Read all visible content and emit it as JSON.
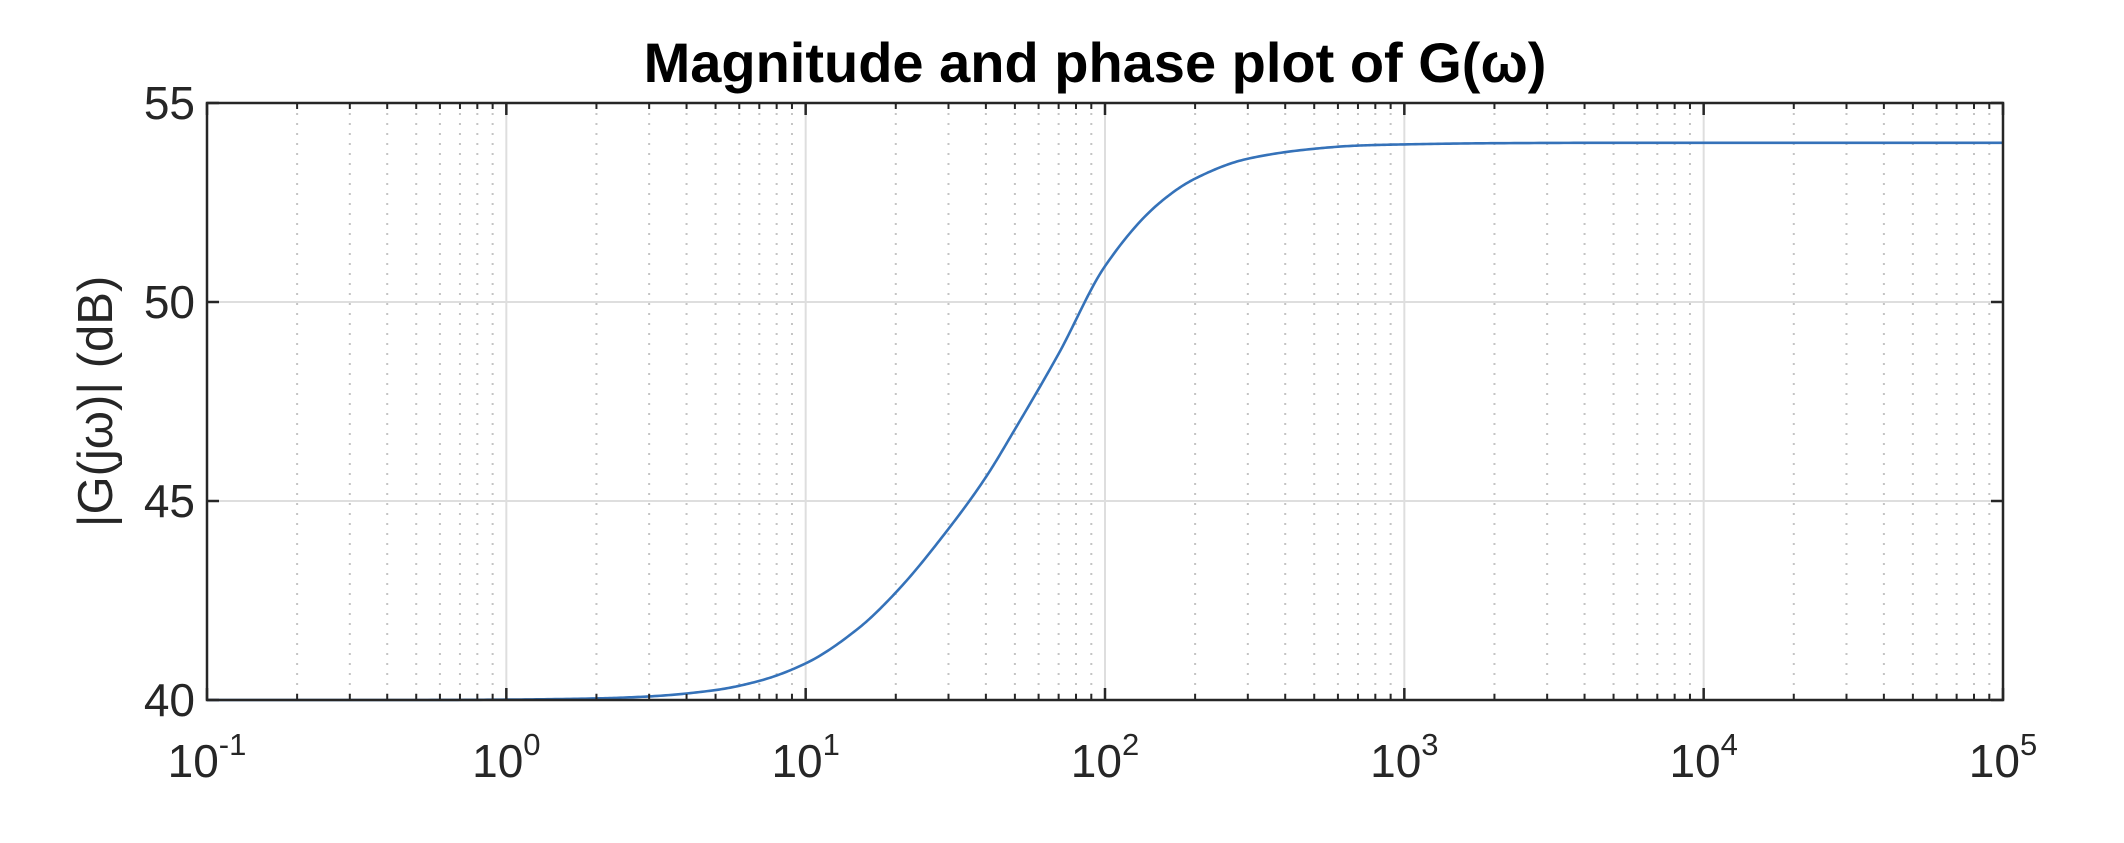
{
  "chart_data": {
    "type": "line",
    "title": "Magnitude and phase plot of G(ω)",
    "xlabel": "",
    "ylabel": "|G(jω)| (dB)",
    "xscale": "log",
    "xlim": [
      0.1,
      100000
    ],
    "ylim": [
      40,
      55
    ],
    "xticks": [
      {
        "base": "10",
        "exp": "-1"
      },
      {
        "base": "10",
        "exp": "0"
      },
      {
        "base": "10",
        "exp": "1"
      },
      {
        "base": "10",
        "exp": "2"
      },
      {
        "base": "10",
        "exp": "3"
      },
      {
        "base": "10",
        "exp": "4"
      },
      {
        "base": "10",
        "exp": "5"
      }
    ],
    "xtick_values": [
      0.1,
      1,
      10,
      100,
      1000,
      10000,
      100000
    ],
    "yticks": [
      "40",
      "45",
      "50",
      "55"
    ],
    "ytick_values": [
      40,
      45,
      50,
      55
    ],
    "grid": true,
    "minor_grid": true,
    "series": [
      {
        "color": "#3572b9",
        "x": [
          0.1,
          0.2,
          0.5,
          1,
          2,
          3,
          5,
          7,
          10,
          15,
          20,
          30,
          40,
          50,
          70,
          100,
          150,
          200,
          300,
          500,
          700,
          1000,
          2000,
          5000,
          10000,
          100000
        ],
        "y": [
          40.0,
          40.0,
          40.0,
          40.01,
          40.04,
          40.09,
          40.25,
          40.48,
          40.92,
          41.8,
          42.7,
          44.3,
          45.6,
          46.8,
          48.7,
          50.9,
          52.45,
          53.1,
          53.6,
          53.85,
          53.93,
          53.96,
          53.99,
          54.0,
          54.0,
          54.0
        ]
      }
    ]
  }
}
